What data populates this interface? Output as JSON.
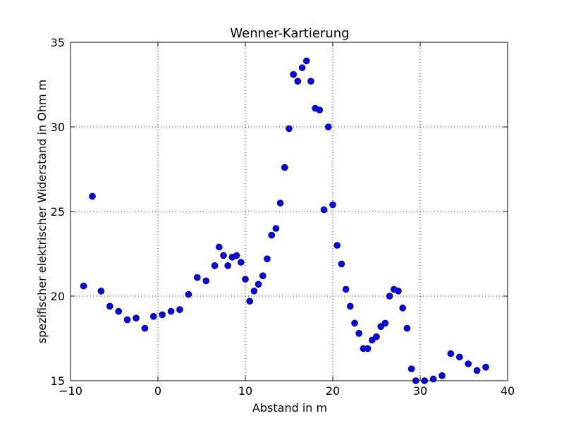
{
  "chart_data": {
    "type": "scatter",
    "title": "Wenner-Kartierung",
    "xlabel": "Abstand in m",
    "ylabel": "spezifischer elektrischer Widerstand in Ohm m",
    "xlim": [
      -10,
      40
    ],
    "ylim": [
      15,
      35
    ],
    "x_ticks": [
      -10,
      0,
      10,
      20,
      30,
      40
    ],
    "y_ticks": [
      15,
      20,
      25,
      30,
      35
    ],
    "x_tick_labels": [
      "−10",
      "0",
      "10",
      "20",
      "30",
      "40"
    ],
    "y_tick_labels": [
      "15",
      "20",
      "25",
      "30",
      "35"
    ],
    "grid": true,
    "marker_color": "#0000ff",
    "points": [
      {
        "x": -8.5,
        "y": 20.6
      },
      {
        "x": -7.5,
        "y": 25.9
      },
      {
        "x": -6.5,
        "y": 20.3
      },
      {
        "x": -5.5,
        "y": 19.4
      },
      {
        "x": -4.5,
        "y": 19.1
      },
      {
        "x": -3.5,
        "y": 18.6
      },
      {
        "x": -2.5,
        "y": 18.7
      },
      {
        "x": -1.5,
        "y": 18.1
      },
      {
        "x": -0.5,
        "y": 18.8
      },
      {
        "x": 0.5,
        "y": 18.9
      },
      {
        "x": 1.5,
        "y": 19.1
      },
      {
        "x": 2.5,
        "y": 19.2
      },
      {
        "x": 3.5,
        "y": 20.1
      },
      {
        "x": 4.5,
        "y": 21.1
      },
      {
        "x": 5.5,
        "y": 20.9
      },
      {
        "x": 6.5,
        "y": 21.8
      },
      {
        "x": 7.0,
        "y": 22.9
      },
      {
        "x": 7.5,
        "y": 22.4
      },
      {
        "x": 8.0,
        "y": 21.8
      },
      {
        "x": 8.5,
        "y": 22.3
      },
      {
        "x": 9.0,
        "y": 22.4
      },
      {
        "x": 9.5,
        "y": 22.0
      },
      {
        "x": 10.0,
        "y": 21.0
      },
      {
        "x": 10.5,
        "y": 19.7
      },
      {
        "x": 11.0,
        "y": 20.3
      },
      {
        "x": 11.5,
        "y": 20.7
      },
      {
        "x": 12.0,
        "y": 21.2
      },
      {
        "x": 12.5,
        "y": 22.2
      },
      {
        "x": 13.0,
        "y": 23.6
      },
      {
        "x": 13.5,
        "y": 24.0
      },
      {
        "x": 14.0,
        "y": 25.5
      },
      {
        "x": 14.5,
        "y": 27.6
      },
      {
        "x": 15.0,
        "y": 29.9
      },
      {
        "x": 15.5,
        "y": 33.1
      },
      {
        "x": 16.0,
        "y": 32.7
      },
      {
        "x": 16.5,
        "y": 33.5
      },
      {
        "x": 17.0,
        "y": 33.9
      },
      {
        "x": 17.5,
        "y": 32.7
      },
      {
        "x": 18.0,
        "y": 31.1
      },
      {
        "x": 18.5,
        "y": 31.0
      },
      {
        "x": 19.0,
        "y": 25.1
      },
      {
        "x": 19.5,
        "y": 30.0
      },
      {
        "x": 20.0,
        "y": 25.4
      },
      {
        "x": 20.5,
        "y": 23.0
      },
      {
        "x": 21.0,
        "y": 21.9
      },
      {
        "x": 21.5,
        "y": 20.4
      },
      {
        "x": 22.0,
        "y": 19.4
      },
      {
        "x": 22.5,
        "y": 18.4
      },
      {
        "x": 23.0,
        "y": 17.8
      },
      {
        "x": 23.5,
        "y": 16.9
      },
      {
        "x": 24.0,
        "y": 16.9
      },
      {
        "x": 24.5,
        "y": 17.4
      },
      {
        "x": 25.0,
        "y": 17.6
      },
      {
        "x": 25.5,
        "y": 18.2
      },
      {
        "x": 26.0,
        "y": 18.4
      },
      {
        "x": 26.5,
        "y": 20.0
      },
      {
        "x": 27.0,
        "y": 20.4
      },
      {
        "x": 27.5,
        "y": 20.3
      },
      {
        "x": 28.0,
        "y": 19.3
      },
      {
        "x": 28.5,
        "y": 18.1
      },
      {
        "x": 29.0,
        "y": 15.7
      },
      {
        "x": 29.5,
        "y": 15.0
      },
      {
        "x": 30.5,
        "y": 15.0
      },
      {
        "x": 31.5,
        "y": 15.1
      },
      {
        "x": 32.5,
        "y": 15.3
      },
      {
        "x": 33.5,
        "y": 16.6
      },
      {
        "x": 34.5,
        "y": 16.4
      },
      {
        "x": 35.5,
        "y": 16.0
      },
      {
        "x": 36.5,
        "y": 15.6
      },
      {
        "x": 37.5,
        "y": 15.8
      }
    ]
  }
}
